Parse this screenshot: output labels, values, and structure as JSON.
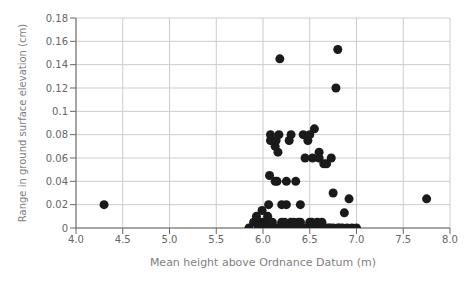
{
  "chart_data": {
    "type": "scatter",
    "x": [
      4.3,
      5.85,
      5.9,
      5.93,
      5.95,
      5.97,
      5.98,
      5.99,
      6.0,
      6.0,
      6.02,
      6.03,
      6.05,
      6.05,
      6.06,
      6.07,
      6.08,
      6.08,
      6.1,
      6.1,
      6.12,
      6.13,
      6.13,
      6.14,
      6.15,
      6.15,
      6.16,
      6.17,
      6.18,
      6.2,
      6.2,
      6.2,
      6.22,
      6.23,
      6.25,
      6.25,
      6.27,
      6.28,
      6.3,
      6.3,
      6.3,
      6.32,
      6.33,
      6.35,
      6.35,
      6.37,
      6.38,
      6.4,
      6.4,
      6.4,
      6.42,
      6.43,
      6.45,
      6.45,
      6.47,
      6.48,
      6.5,
      6.5,
      6.5,
      6.52,
      6.52,
      6.53,
      6.55,
      6.55,
      6.57,
      6.58,
      6.6,
      6.6,
      6.62,
      6.63,
      6.65,
      6.65,
      6.67,
      6.68,
      6.7,
      6.72,
      6.73,
      6.75,
      6.75,
      6.78,
      6.8,
      6.8,
      6.82,
      6.85,
      6.87,
      6.9,
      6.92,
      6.95,
      7.0,
      7.75
    ],
    "y": [
      0.02,
      0.0,
      0.005,
      0.01,
      0.0,
      0.005,
      0.0,
      0.015,
      0.0,
      0.005,
      0.0,
      0.005,
      0.0,
      0.01,
      0.02,
      0.045,
      0.075,
      0.08,
      0.0,
      0.005,
      0.0,
      0.04,
      0.07,
      0.075,
      0.0,
      0.04,
      0.065,
      0.08,
      0.145,
      0.0,
      0.005,
      0.02,
      0.0,
      0.005,
      0.02,
      0.04,
      0.0,
      0.075,
      0.0,
      0.005,
      0.08,
      0.0,
      0.005,
      0.0,
      0.04,
      0.0,
      0.005,
      0.0,
      0.005,
      0.02,
      0.0,
      0.08,
      0.0,
      0.06,
      0.0,
      0.075,
      0.0,
      0.005,
      0.08,
      0.0,
      0.005,
      0.06,
      0.0,
      0.085,
      0.0,
      0.005,
      0.06,
      0.065,
      0.0,
      0.005,
      0.0,
      0.055,
      0.0,
      0.055,
      0.0,
      0.0,
      0.06,
      0.0,
      0.03,
      0.12,
      0.0,
      0.153,
      0.0,
      0.0,
      0.013,
      0.0,
      0.025,
      0.0,
      0.0,
      0.025
    ],
    "color": "#1a1a1a",
    "xlim": [
      4.0,
      8.0
    ],
    "ylim": [
      0.0,
      0.18
    ],
    "xticks": [
      {
        "value": 4.0,
        "label": "4.0"
      },
      4.5,
      {
        "value": 5.0,
        "label": "5.0"
      },
      5.5,
      {
        "value": 6.0,
        "label": "6.0"
      },
      6.5,
      {
        "value": 7.0,
        "label": "7.0"
      },
      7.5,
      {
        "value": 8.0,
        "label": "8.0"
      }
    ],
    "yticks": [
      0,
      0.02,
      0.04,
      0.06,
      0.08,
      0.1,
      0.12,
      0.14,
      0.16,
      0.18
    ],
    "xlabel": "Mean height above Ordnance Datum (m)",
    "ylabel": "Range in ground surface elevation (cm)",
    "grid": true
  }
}
